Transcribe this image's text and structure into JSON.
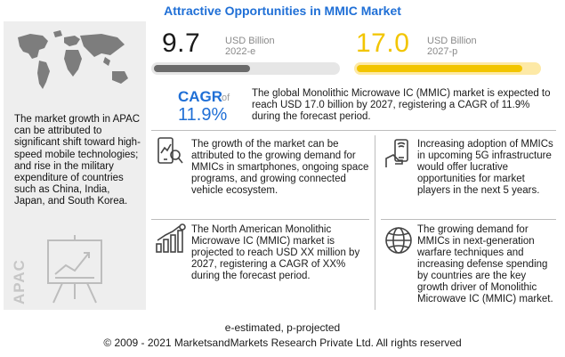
{
  "title": "Attractive Opportunities in MMIC Market",
  "market": {
    "value_2022": "9.7",
    "unit_2022": "USD Billion",
    "year_2022": "2022-e",
    "value_2027": "17.0",
    "unit_2027": "USD Billion",
    "year_2027": "2027-p"
  },
  "cagr": {
    "label": "CAGR",
    "of": "of",
    "value": "11.9%",
    "text": "The global Monolithic Microwave IC (MMIC) market is expected to reach USD 17.0 billion by 2027, registering a CAGR of 11.9% during the forecast period."
  },
  "apac": {
    "text": "The market growth in APAC can be attributed to significant shift toward high-speed mobile technologies; and rise in the military expenditure of countries such as China, India, Japan, and South Korea.",
    "vertical_label": "APAC"
  },
  "cards": {
    "smartphones": "The growth of the market can be attributed to the growing demand for MMICs in smartphones, ongoing space programs, and growing connected vehicle ecosystem.",
    "fiveg": "Increasing adoption of MMICs in upcoming 5G infrastructure would offer lucrative opportunities for market players in the next 5 years.",
    "north_america": "The North American Monolithic Microwave IC (MMIC) market is projected to reach USD XX million by 2027, registering a CAGR of XX% during the forecast period.",
    "defense": "The growing demand for MMICs in next-generation warfare techniques and increasing defense spending by countries are the key growth driver of Monolithic Microwave IC (MMIC) market."
  },
  "footnote": "e-estimated, p-projected",
  "copyright": "© 2009 - 2021 MarketsandMarkets Research Private Ltd. All rights reserved",
  "colors": {
    "accent": "#1f6fd6",
    "yellow": "#f2c500",
    "dark_bar": "#6b6b6b"
  }
}
